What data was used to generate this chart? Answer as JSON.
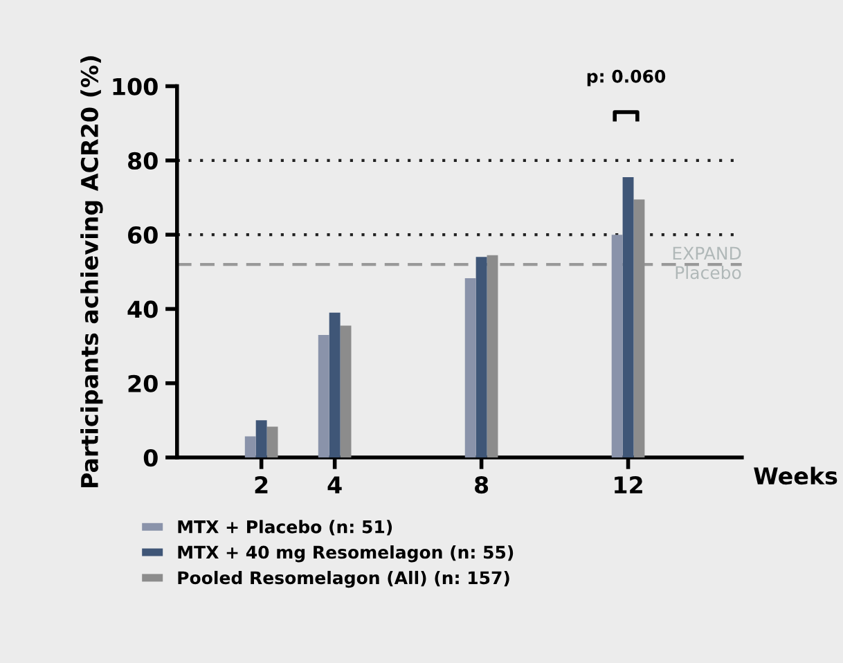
{
  "chart_data": {
    "type": "bar",
    "ylabel": "Participants achieving ACR20 (%)",
    "xlabel": "Weeks",
    "x": [
      2,
      4,
      8,
      12
    ],
    "series": [
      {
        "name": "MTX + Placebo (n: 51)",
        "color": "#8a93aa",
        "values": [
          5.7,
          33,
          48.3,
          60
        ]
      },
      {
        "name": "MTX + 40 mg Resomelagon (n: 55)",
        "color": "#3f5677",
        "values": [
          10,
          39,
          54,
          75.5
        ]
      },
      {
        "name": "Pooled Resomelagon (All) (n: 157)",
        "color": "#8c8c8c",
        "values": [
          8.3,
          35.5,
          54.5,
          69.5
        ]
      }
    ],
    "xlim": [
      -0.3,
      15.1
    ],
    "xticks": [
      2,
      4,
      8,
      12
    ],
    "ylim": [
      0,
      100
    ],
    "yticks": [
      0,
      20,
      40,
      60,
      80,
      100
    ],
    "ref_lines": [
      {
        "axis": "y",
        "value": 80,
        "line_style": "dotted",
        "color": "#222222"
      },
      {
        "axis": "y",
        "value": 60,
        "line_style": "dotted",
        "color": "#222222"
      },
      {
        "axis": "y",
        "value": 52,
        "line_style": "dashed",
        "color": "#999999",
        "label": "EXPAND\nPlacebo"
      }
    ],
    "annotations": [
      "p: 0.060"
    ],
    "legend": "bottom",
    "grid": false
  }
}
